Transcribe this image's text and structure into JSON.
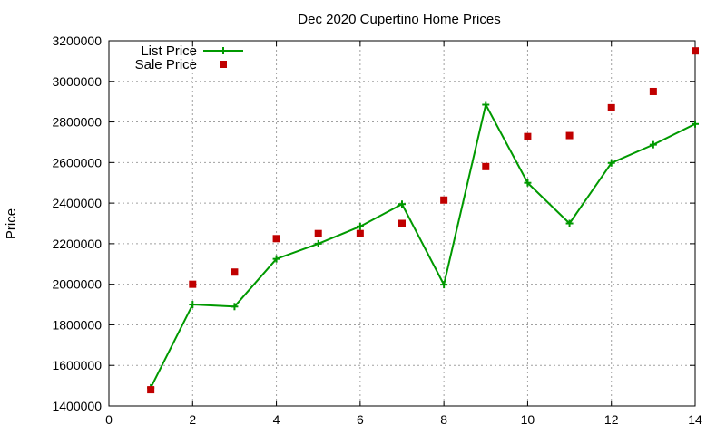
{
  "chart_data": {
    "type": "line",
    "title": "Dec 2020 Cupertino Home Prices",
    "xlabel": "",
    "ylabel": "Price",
    "xlim": [
      0,
      14
    ],
    "ylim": [
      1400000,
      3200000
    ],
    "xticks": [
      0,
      2,
      4,
      6,
      8,
      10,
      12,
      14
    ],
    "yticks": [
      1400000,
      1600000,
      1800000,
      2000000,
      2200000,
      2400000,
      2600000,
      2800000,
      3000000,
      3200000
    ],
    "grid": true,
    "legend": "top-left",
    "series": [
      {
        "name": "List Price",
        "style": "line+cross",
        "color": "#009900",
        "x": [
          1,
          2,
          3,
          4,
          5,
          6,
          7,
          8,
          9,
          10,
          11,
          12,
          13,
          14
        ],
        "y": [
          1490000,
          1900000,
          1890000,
          2125000,
          2200000,
          2285000,
          2395000,
          1998000,
          2885000,
          2500000,
          2300000,
          2598000,
          2688000,
          2790000
        ]
      },
      {
        "name": "Sale Price",
        "style": "square-points",
        "color": "#c00000",
        "x": [
          1,
          2,
          3,
          4,
          5,
          6,
          7,
          8,
          9,
          10,
          11,
          12,
          13,
          14
        ],
        "y": [
          1480000,
          2000000,
          2060000,
          2225000,
          2250000,
          2250000,
          2300000,
          2415000,
          2580000,
          2728000,
          2733000,
          2870000,
          2950000,
          3150000
        ]
      }
    ]
  }
}
